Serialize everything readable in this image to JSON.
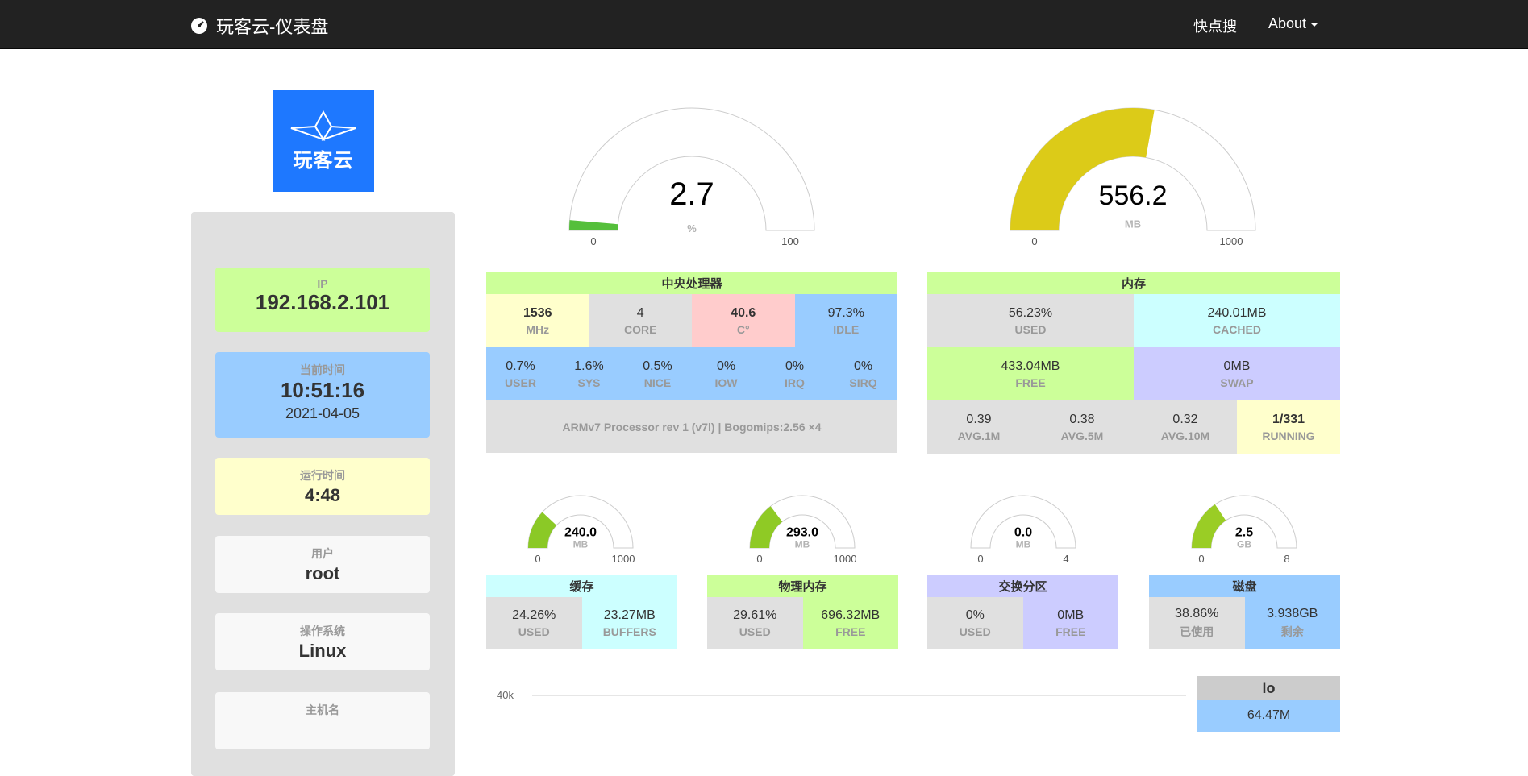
{
  "navbar": {
    "title": "玩客云-仪表盘",
    "links": [
      "快点搜",
      "About"
    ]
  },
  "logo": {
    "text": "玩客云"
  },
  "sidebar": {
    "ip": {
      "label": "IP",
      "value": "192.168.2.101"
    },
    "time": {
      "label": "当前时间",
      "value": "10:51:16",
      "date": "2021-04-05"
    },
    "uptime": {
      "label": "运行时间",
      "value": "4:48"
    },
    "user": {
      "label": "用户",
      "value": "root"
    },
    "os": {
      "label": "操作系统",
      "value": "Linux"
    },
    "hostname": {
      "label": "主机名"
    }
  },
  "gauges": {
    "cpu": {
      "value": "2.7",
      "num": 2.7,
      "min": "0",
      "max": "100",
      "unit": "%",
      "color": "#55bf3b"
    },
    "mem": {
      "value": "556.2",
      "num": 556.2,
      "min": "0",
      "max": "1000",
      "unit": "MB",
      "color": "#dccb18"
    },
    "cache": {
      "value": "240.0",
      "num": 240,
      "min": "0",
      "max": "1000",
      "unit": "MB",
      "color": "#8bc926"
    },
    "phys": {
      "value": "293.0",
      "num": 293,
      "min": "0",
      "max": "1000",
      "unit": "MB",
      "color": "#8fca25"
    },
    "swap": {
      "value": "0.0",
      "num": 0,
      "min": "0",
      "max": "4",
      "unit": "MB",
      "color": "#ff0000"
    },
    "disk": {
      "value": "2.5",
      "num": 2.5,
      "min": "0",
      "max": "8",
      "unit": "GB",
      "color": "#9acd25"
    }
  },
  "cpu": {
    "title": "中央处理器",
    "row1": [
      {
        "v": "1536",
        "l": "MHz"
      },
      {
        "v": "4",
        "l": "CORE"
      },
      {
        "v": "40.6",
        "l": "C°"
      },
      {
        "v": "97.3%",
        "l": "IDLE"
      }
    ],
    "row2": [
      {
        "v": "0.7%",
        "l": "USER"
      },
      {
        "v": "1.6%",
        "l": "SYS"
      },
      {
        "v": "0.5%",
        "l": "NICE"
      },
      {
        "v": "0%",
        "l": "IOW"
      },
      {
        "v": "0%",
        "l": "IRQ"
      },
      {
        "v": "0%",
        "l": "SIRQ"
      }
    ],
    "model": "ARMv7 Processor rev 1 (v7l) | Bogomips:2.56 ×4"
  },
  "memory": {
    "title": "内存",
    "cells": [
      {
        "v": "56.23%",
        "l": "USED"
      },
      {
        "v": "240.01MB",
        "l": "CACHED"
      },
      {
        "v": "433.04MB",
        "l": "FREE"
      },
      {
        "v": "0MB",
        "l": "SWAP"
      }
    ],
    "load": [
      {
        "v": "0.39",
        "l": "AVG.1M"
      },
      {
        "v": "0.38",
        "l": "AVG.5M"
      },
      {
        "v": "0.32",
        "l": "AVG.10M"
      },
      {
        "v": "1/331",
        "l": "RUNNING"
      }
    ]
  },
  "small": [
    {
      "title": "缓存",
      "a": {
        "v": "24.26%",
        "l": "USED"
      },
      "b": {
        "v": "23.27MB",
        "l": "BUFFERS"
      },
      "hc": "#ccffff",
      "bc": "#ccffff"
    },
    {
      "title": "物理内存",
      "a": {
        "v": "29.61%",
        "l": "USED"
      },
      "b": {
        "v": "696.32MB",
        "l": "FREE"
      },
      "hc": "#ccff99",
      "bc": "#ccff99"
    },
    {
      "title": "交换分区",
      "a": {
        "v": "0%",
        "l": "USED"
      },
      "b": {
        "v": "0MB",
        "l": "FREE"
      },
      "hc": "#ccccff",
      "bc": "#ccccff"
    },
    {
      "title": "磁盘",
      "a": {
        "v": "38.86%",
        "l": "已使用"
      },
      "b": {
        "v": "3.938GB",
        "l": "剩余"
      },
      "hc": "#99ccff",
      "bc": "#99ccff"
    }
  ],
  "net": {
    "ytick": "40k",
    "iface": "lo",
    "value": "64.47M"
  }
}
